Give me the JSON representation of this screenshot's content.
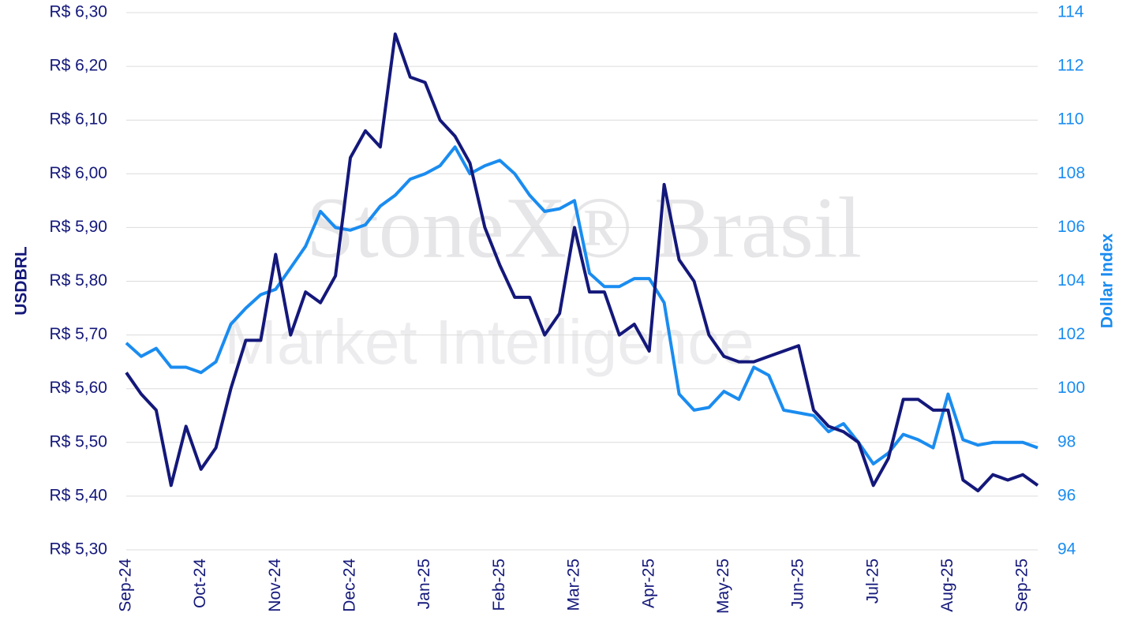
{
  "chart_data": {
    "type": "line",
    "watermark": [
      "StoneX® Brasil",
      "Market Intelligence"
    ],
    "y_label": "USDBRL",
    "y2_label": "Dollar Index",
    "categories": [
      "Sep-24",
      null,
      null,
      null,
      null,
      "Oct-24",
      null,
      null,
      null,
      null,
      "Nov-24",
      null,
      null,
      null,
      null,
      "Dec-24",
      null,
      null,
      null,
      null,
      "Jan-25",
      null,
      null,
      null,
      null,
      "Feb-25",
      null,
      null,
      null,
      null,
      "Mar-25",
      null,
      null,
      null,
      null,
      "Apr-25",
      null,
      null,
      null,
      null,
      "May-25",
      null,
      null,
      null,
      null,
      "Jun-25",
      null,
      null,
      null,
      null,
      "Jul-25",
      null,
      null,
      null,
      null,
      "Aug-25",
      null,
      null,
      null,
      null,
      "Sep-25",
      null
    ],
    "series": [
      {
        "name": "USDBRL",
        "color": "#14187a",
        "axis": "y",
        "values": [
          5.63,
          5.59,
          5.56,
          5.42,
          5.53,
          5.45,
          5.49,
          5.6,
          5.69,
          5.69,
          5.85,
          5.7,
          5.78,
          5.76,
          5.81,
          6.03,
          6.08,
          6.05,
          6.26,
          6.18,
          6.17,
          6.1,
          6.07,
          6.02,
          5.9,
          5.83,
          5.77,
          5.77,
          5.7,
          5.74,
          5.9,
          5.78,
          5.78,
          5.7,
          5.72,
          5.67,
          5.98,
          5.84,
          5.8,
          5.7,
          5.66,
          5.65,
          5.65,
          5.66,
          5.67,
          5.68,
          5.56,
          5.53,
          5.52,
          5.5,
          5.42,
          5.47,
          5.58,
          5.58,
          5.56,
          5.56,
          5.43,
          5.41,
          5.44,
          5.43,
          5.44,
          5.42
        ]
      },
      {
        "name": "Dollar Index",
        "color": "#1a8cf0",
        "axis": "y2",
        "values": [
          101.7,
          101.2,
          101.5,
          100.8,
          100.8,
          100.6,
          101.0,
          102.4,
          103.0,
          103.5,
          103.7,
          104.5,
          105.3,
          106.6,
          106.0,
          105.9,
          106.1,
          106.8,
          107.2,
          107.8,
          108.0,
          108.3,
          109.0,
          108.0,
          108.3,
          108.5,
          108.0,
          107.2,
          106.6,
          106.7,
          107.0,
          104.3,
          103.8,
          103.8,
          104.1,
          104.1,
          103.2,
          99.8,
          99.2,
          99.3,
          99.9,
          99.6,
          100.8,
          100.5,
          99.2,
          99.1,
          99.0,
          98.4,
          98.7,
          98.0,
          97.2,
          97.6,
          98.3,
          98.1,
          97.8,
          99.8,
          98.1,
          97.9,
          98.0,
          98.0,
          98.0,
          97.8
        ]
      }
    ],
    "ylim": [
      5.3,
      6.3
    ],
    "yticks": [
      {
        "value": 5.3,
        "label": "R$ 5,30"
      },
      {
        "value": 5.4,
        "label": "R$ 5,40"
      },
      {
        "value": 5.5,
        "label": "R$ 5,50"
      },
      {
        "value": 5.6,
        "label": "R$ 5,60"
      },
      {
        "value": 5.7,
        "label": "R$ 5,70"
      },
      {
        "value": 5.8,
        "label": "R$ 5,80"
      },
      {
        "value": 5.9,
        "label": "R$ 5,90"
      },
      {
        "value": 6.0,
        "label": "R$ 6,00"
      },
      {
        "value": 6.1,
        "label": "R$ 6,10"
      },
      {
        "value": 6.2,
        "label": "R$ 6,20"
      },
      {
        "value": 6.3,
        "label": "R$ 6,30"
      }
    ],
    "y2lim": [
      94,
      114
    ],
    "y2ticks": [
      94,
      96,
      98,
      100,
      102,
      104,
      106,
      108,
      110,
      112,
      114
    ],
    "grid": true
  }
}
